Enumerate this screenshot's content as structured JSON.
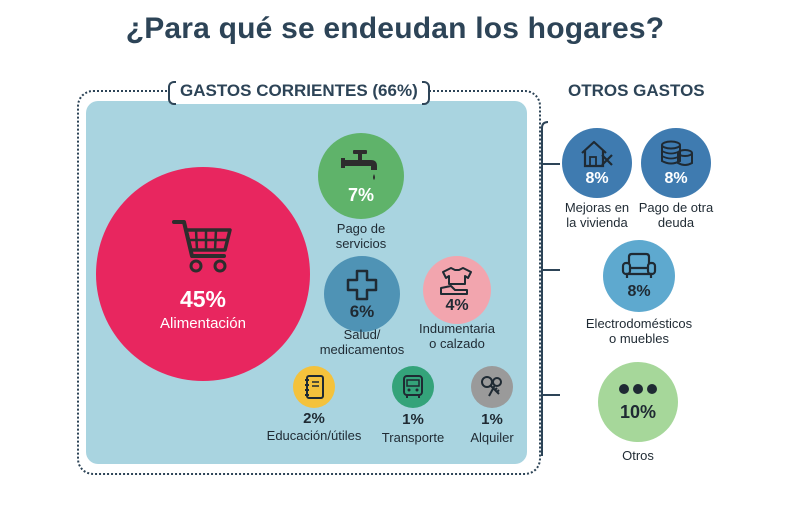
{
  "title": "¿Para qué se endeudan los hogares?",
  "sections": {
    "left": "GASTOS CORRIENTES (66%)",
    "right": "OTROS GASTOS"
  },
  "items": [
    {
      "key": "alimentacion",
      "pct": "45%",
      "label": "Alimentación",
      "icon": "shopping-cart-icon",
      "color": "#e8265f"
    },
    {
      "key": "servicios",
      "pct": "7%",
      "label_lines": [
        "Pago de",
        "servicios"
      ],
      "icon": "faucet-icon",
      "color": "#5fb36a"
    },
    {
      "key": "salud",
      "pct": "6%",
      "label_lines": [
        "Salud/",
        "medicamentos"
      ],
      "icon": "medical-cross-icon",
      "color": "#4f93b5"
    },
    {
      "key": "indumentaria",
      "pct": "4%",
      "label_lines": [
        "Indumentaria",
        "o calzado"
      ],
      "icon": "clothing-icon",
      "color": "#f2a5ae"
    },
    {
      "key": "educacion",
      "pct": "2%",
      "label": "Educación/útiles",
      "icon": "notebook-icon",
      "color": "#f4c23c"
    },
    {
      "key": "transporte",
      "pct": "1%",
      "label": "Transporte",
      "icon": "bus-icon",
      "color": "#34a37a"
    },
    {
      "key": "alquiler",
      "pct": "1%",
      "label": "Alquiler",
      "icon": "keys-icon",
      "color": "#9a9a9a"
    },
    {
      "key": "mejoras",
      "pct": "8%",
      "label_lines": [
        "Mejoras en",
        "la vivienda"
      ],
      "icon": "house-tools-icon",
      "color": "#3f7bb0"
    },
    {
      "key": "otra_deuda",
      "pct": "8%",
      "label_lines": [
        "Pago de otra",
        "deuda"
      ],
      "icon": "coins-icon",
      "color": "#3f7bb0"
    },
    {
      "key": "electro",
      "pct": "8%",
      "label_lines": [
        "Electrodomésticos",
        "o muebles"
      ],
      "icon": "armchair-icon",
      "color": "#5ea9cf"
    },
    {
      "key": "otros",
      "pct": "10%",
      "label": "Otros",
      "icon": "ellipsis-icon",
      "color": "#a6d79a"
    }
  ]
}
